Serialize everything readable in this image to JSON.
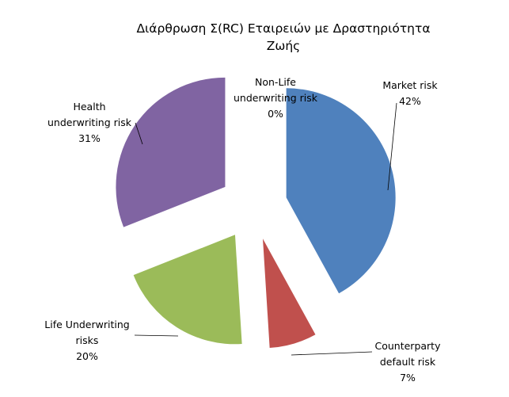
{
  "chart_data": {
    "type": "pie",
    "title_lines": [
      "Διάρθρωση Σ(RC)  Εταιρειών με Δραστηριότητα",
      "Ζωής"
    ],
    "slices": [
      {
        "label_lines": [
          "Market risk"
        ],
        "value": 42,
        "value_label": "42%",
        "color": "#4F81BD"
      },
      {
        "label_lines": [
          "Counterparty",
          "default risk"
        ],
        "value": 7,
        "value_label": "7%",
        "color": "#C0504D"
      },
      {
        "label_lines": [
          "Life Underwriting",
          "risks"
        ],
        "value": 20,
        "value_label": "20%",
        "color": "#9BBB59"
      },
      {
        "label_lines": [
          "Health",
          "underwriting risk"
        ],
        "value": 31,
        "value_label": "31%",
        "color": "#8064A2"
      },
      {
        "label_lines": [
          "Non-Life",
          "underwriting risk"
        ],
        "value": 0,
        "value_label": "0%",
        "color": "#4BACC6"
      }
    ],
    "exploded": true,
    "legend": "none"
  }
}
